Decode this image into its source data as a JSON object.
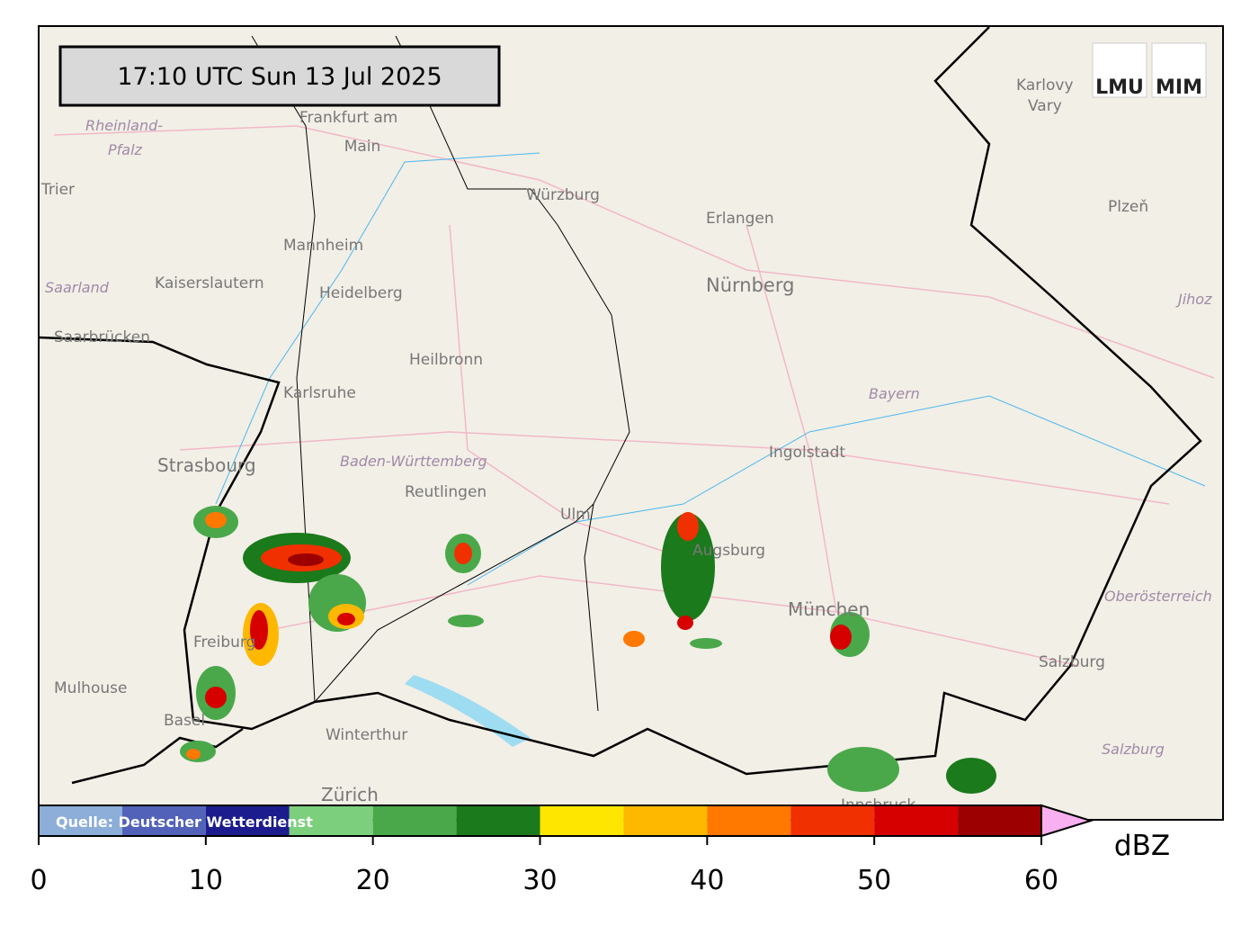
{
  "timestamp": "17:10 UTC  Sun 13 Jul 2025",
  "source": "Quelle: Deutscher Wetterdienst",
  "logos": [
    "LMU",
    "MIM"
  ],
  "places": [
    "Frankfurt am",
    "Main",
    "Rheinland-",
    "Pfalz",
    "Trier",
    "Mannheim",
    "Kaiserslautern",
    "Heidelberg",
    "Saarland",
    "Saarbrücken",
    "Würzburg",
    "Erlangen",
    "Nürnberg",
    "Karlovy",
    "Vary",
    "Plzeň",
    "Jihoz",
    "Heilbronn",
    "Karlsruhe",
    "Baden-Württemberg",
    "Strasbourg",
    "Reutlingen",
    "Ulm",
    "Ingolstadt",
    "Bayern",
    "Augsburg",
    "München",
    "Oberösterreich",
    "Freiburg",
    "Mulhouse",
    "Basel",
    "Winterthur",
    "Zürich",
    "Salzburg",
    "Salzburg",
    "Innsbruck"
  ],
  "colorbar": {
    "bounds": [
      0,
      5,
      10,
      15,
      20,
      25,
      30,
      35,
      40,
      45,
      50,
      55,
      60
    ],
    "colors": [
      "#8caed8",
      "#5262b8",
      "#1c1c8e",
      "#7ccf7c",
      "#4aa84a",
      "#1b7a1b",
      "#ffe600",
      "#ffb800",
      "#ff7800",
      "#f03000",
      "#d60000",
      "#9c0000"
    ],
    "extend_color": "#f8b0f0",
    "ticks": [
      0,
      10,
      20,
      30,
      40,
      50,
      60
    ],
    "unit": "dBZ"
  }
}
